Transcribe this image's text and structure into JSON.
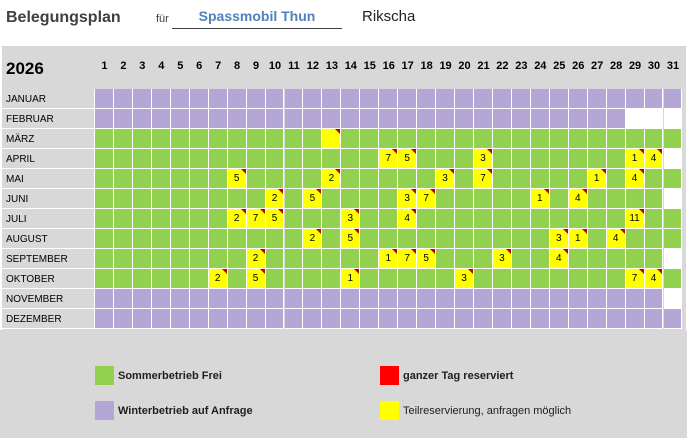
{
  "header": {
    "title": "Belegungsplan",
    "fuer": "für",
    "organisation": "Spassmobil Thun",
    "vehicle": "Rikscha"
  },
  "calendar": {
    "year": "2026",
    "days": [
      "1",
      "2",
      "3",
      "4",
      "5",
      "6",
      "7",
      "8",
      "9",
      "10",
      "11",
      "12",
      "13",
      "14",
      "15",
      "16",
      "17",
      "18",
      "19",
      "20",
      "21",
      "22",
      "23",
      "24",
      "25",
      "26",
      "27",
      "28",
      "29",
      "30",
      "31"
    ],
    "months": [
      {
        "name": "JANUAR",
        "type": "winter",
        "length": 31,
        "entries": {}
      },
      {
        "name": "FEBRUAR",
        "type": "winter",
        "length": 28,
        "entries": {}
      },
      {
        "name": "MÄRZ",
        "type": "summer",
        "length": 31,
        "entries": {
          "13": ""
        }
      },
      {
        "name": "APRIL",
        "type": "summer",
        "length": 30,
        "entries": {
          "16": "7",
          "17": "5",
          "21": "3",
          "29": "1",
          "30": "4"
        }
      },
      {
        "name": "MAI",
        "type": "summer",
        "length": 31,
        "entries": {
          "8": "5",
          "13": "2",
          "19": "3",
          "21": "7",
          "27": "1",
          "29": "4"
        }
      },
      {
        "name": "JUNI",
        "type": "summer",
        "length": 30,
        "entries": {
          "10": "2",
          "12": "5",
          "17": "3",
          "18": "7",
          "24": "1",
          "26": "4"
        }
      },
      {
        "name": "JULI",
        "type": "summer",
        "length": 31,
        "entries": {
          "8": "2",
          "9": "7",
          "10": "5",
          "14": "3",
          "17": "4",
          "29": "11"
        }
      },
      {
        "name": "AUGUST",
        "type": "summer",
        "length": 31,
        "entries": {
          "12": "2",
          "14": "5",
          "25": "3",
          "26": "1",
          "28": "4"
        }
      },
      {
        "name": "SEPTEMBER",
        "type": "summer",
        "length": 30,
        "entries": {
          "9": "2",
          "16": "1",
          "17": "7",
          "18": "5",
          "22": "3",
          "25": "4"
        }
      },
      {
        "name": "OKTOBER",
        "type": "summer",
        "length": 31,
        "entries": {
          "7": "2",
          "9": "5",
          "14": "1",
          "20": "3",
          "29": "7",
          "30": "4"
        }
      },
      {
        "name": "NOVEMBER",
        "type": "winter",
        "length": 30,
        "entries": {}
      },
      {
        "name": "DEZEMBER",
        "type": "winter",
        "length": 31,
        "entries": {}
      }
    ]
  },
  "legend": {
    "summer_free": "Sommerbetrieb Frei",
    "winter_request": "Winterbetrieb auf Anfrage",
    "full_day_reserved": "ganzer Tag reserviert",
    "partial_reservation": "Teilreservierung, anfragen möglich"
  },
  "colors": {
    "summer": "#92d050",
    "winter": "#b4a7d6",
    "reserved": "#ff0000",
    "partial": "#ffff00"
  }
}
